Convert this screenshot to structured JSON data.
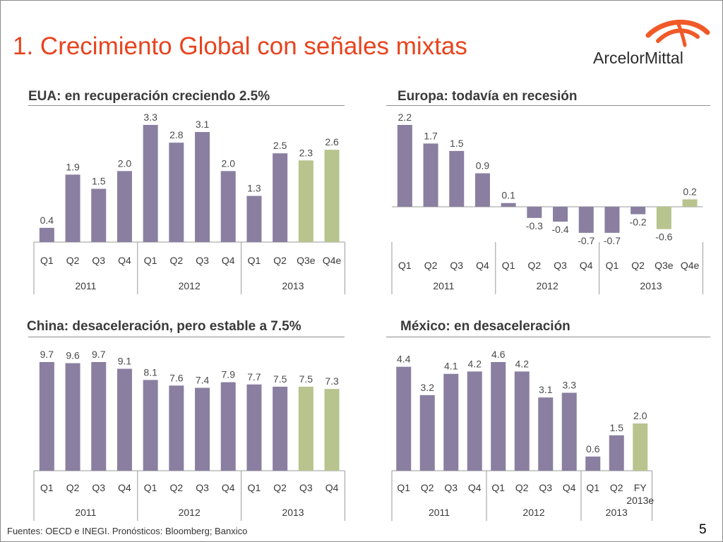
{
  "title": "1. Crecimiento Global con señales mixtas",
  "brand": "ArcelorMittal",
  "footer": "Fuentes: OECD e INEGI. Pronósticos: Bloomberg; Banxico",
  "page_number": "5",
  "colors": {
    "actual": "#8a7fa0",
    "forecast": "#b7c48e",
    "title": "#e8431e",
    "logo": "#f05a28"
  },
  "chart_data": [
    {
      "type": "bar",
      "title": "EUA: en recuperación creciendo 2.5%",
      "categories": [
        "Q1",
        "Q2",
        "Q3",
        "Q4",
        "Q1",
        "Q2",
        "Q3",
        "Q4",
        "Q1",
        "Q2",
        "Q3e",
        "Q4e"
      ],
      "years": [
        "2011",
        "2012",
        "2013"
      ],
      "values": [
        0.4,
        1.9,
        1.5,
        2.0,
        3.3,
        2.8,
        3.1,
        2.0,
        1.3,
        2.5,
        2.3,
        2.6
      ],
      "labels": [
        "0.4",
        "1.9",
        "1.5",
        "2.0",
        "3.3",
        "2.8",
        "3.1",
        "2.0",
        "1.3",
        "2.5",
        "2.3",
        "2.6"
      ],
      "forecast": [
        false,
        false,
        false,
        false,
        false,
        false,
        false,
        false,
        false,
        false,
        true,
        true
      ],
      "ylim": [
        0,
        3.3
      ]
    },
    {
      "type": "bar",
      "title": "Europa: todavía en recesión",
      "categories": [
        "Q1",
        "Q2",
        "Q3",
        "Q4",
        "Q1",
        "Q2",
        "Q3",
        "Q4",
        "Q1",
        "Q2",
        "Q3e",
        "Q4e"
      ],
      "years": [
        "2011",
        "2012",
        "2013"
      ],
      "values": [
        2.2,
        1.7,
        1.5,
        0.9,
        0.1,
        -0.3,
        -0.4,
        -0.7,
        -0.7,
        -0.2,
        -0.6,
        0.2
      ],
      "labels": [
        "2.2",
        "1.7",
        "1.5",
        "0.9",
        "0.1",
        "-0.3",
        "-0.4",
        "-0.7",
        "-0.7",
        "-0.2",
        "-0.6",
        "0.2"
      ],
      "forecast": [
        false,
        false,
        false,
        false,
        false,
        false,
        false,
        false,
        false,
        false,
        true,
        true
      ],
      "ylim": [
        -0.7,
        2.2
      ]
    },
    {
      "type": "bar",
      "title": "China: desaceleración, pero estable a 7.5%",
      "categories": [
        "Q1",
        "Q2",
        "Q3",
        "Q4",
        "Q1",
        "Q2",
        "Q3",
        "Q4",
        "Q1",
        "Q2",
        "Q3",
        "Q4"
      ],
      "years": [
        "2011",
        "2012",
        "2013"
      ],
      "values": [
        9.7,
        9.6,
        9.7,
        9.1,
        8.1,
        7.6,
        7.4,
        7.9,
        7.7,
        7.5,
        7.5,
        7.3
      ],
      "labels": [
        "9.7",
        "9.6",
        "9.7",
        "9.1",
        "8.1",
        "7.6",
        "7.4",
        "7.9",
        "7.7",
        "7.5",
        "7.5",
        "7.3"
      ],
      "forecast": [
        false,
        false,
        false,
        false,
        false,
        false,
        false,
        false,
        false,
        false,
        true,
        true
      ],
      "ylim": [
        0,
        9.7
      ]
    },
    {
      "type": "bar",
      "title": "México: en desaceleración",
      "categories": [
        "Q1",
        "Q2",
        "Q3",
        "Q4",
        "Q1",
        "Q2",
        "Q3",
        "Q4",
        "Q1",
        "Q2",
        "FY 2013e"
      ],
      "years": [
        "2011",
        "2012",
        "2013"
      ],
      "values": [
        4.4,
        3.2,
        4.1,
        4.2,
        4.6,
        4.2,
        3.1,
        3.3,
        0.6,
        1.5,
        2.0
      ],
      "labels": [
        "4.4",
        "3.2",
        "4.1",
        "4.2",
        "4.6",
        "4.2",
        "3.1",
        "3.3",
        "0.6",
        "1.5",
        "2.0"
      ],
      "forecast": [
        false,
        false,
        false,
        false,
        false,
        false,
        false,
        false,
        false,
        false,
        true
      ],
      "ylim": [
        0,
        4.6
      ]
    }
  ]
}
